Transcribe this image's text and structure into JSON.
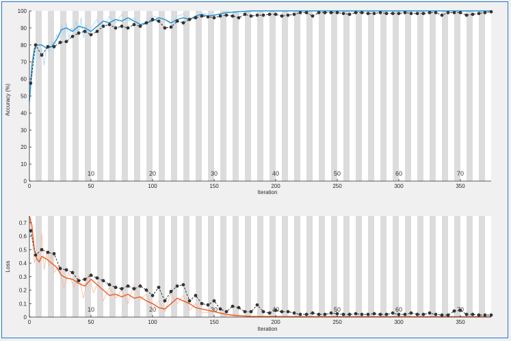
{
  "colors": {
    "accuracy_line": "#1f8fd6",
    "accuracy_raw": "#a6d3f2",
    "loss_line": "#f2571b",
    "loss_raw": "#f9b79b",
    "validation": "#333333",
    "band": "#dcdcdc",
    "plot_bg": "#ffffff",
    "frame": "#1f77d0"
  },
  "chart_data": [
    {
      "type": "line",
      "title": "",
      "xlabel": "Iteration",
      "ylabel": "Accuracy (%)",
      "xlim": [
        0,
        375
      ],
      "ylim": [
        0,
        100
      ],
      "xticks": [
        0,
        50,
        100,
        150,
        200,
        250,
        300,
        350
      ],
      "yticks": [
        0,
        10,
        20,
        30,
        40,
        50,
        60,
        70,
        80,
        90,
        100
      ],
      "grid": false,
      "epoch_band_width": 5,
      "epoch_labels": [
        {
          "x": 50,
          "text": "10"
        },
        {
          "x": 100,
          "text": "20"
        },
        {
          "x": 150,
          "text": "30"
        },
        {
          "x": 200,
          "text": "40"
        },
        {
          "x": 250,
          "text": "50"
        },
        {
          "x": 300,
          "text": "60"
        },
        {
          "x": 350,
          "text": "70"
        }
      ],
      "series": [
        {
          "role": "training_smoothed",
          "x": [
            0,
            2,
            4,
            6,
            10,
            14,
            18,
            22,
            26,
            30,
            35,
            40,
            45,
            50,
            55,
            60,
            65,
            70,
            75,
            80,
            85,
            90,
            95,
            100,
            105,
            110,
            115,
            120,
            125,
            130,
            135,
            140,
            145,
            150,
            160,
            170,
            180,
            200,
            220,
            240,
            260,
            280,
            300,
            320,
            340,
            360,
            375
          ],
          "y": [
            47,
            68,
            78,
            80,
            80,
            78,
            79,
            83,
            89,
            90,
            88,
            91,
            90,
            88,
            91,
            94,
            93,
            95,
            94,
            96,
            94,
            92,
            93,
            94,
            96,
            95,
            93,
            95,
            96,
            95,
            97,
            98,
            97,
            97.5,
            99,
            99.5,
            100,
            100,
            100,
            100,
            100,
            100,
            100,
            100,
            100,
            100,
            100
          ]
        },
        {
          "role": "training_raw",
          "x": [
            0,
            2,
            4,
            6,
            8,
            10,
            12,
            14,
            16,
            18,
            20,
            22,
            24,
            26,
            28,
            30,
            32,
            34,
            36,
            38,
            40,
            42,
            44,
            46,
            48,
            50,
            55,
            60,
            65,
            70,
            75,
            80,
            85,
            90,
            95,
            100,
            105,
            110,
            115,
            120,
            125,
            130,
            140,
            150,
            160,
            170,
            180,
            200,
            220,
            240,
            260,
            300,
            340,
            375
          ],
          "y": [
            45,
            60,
            76,
            80,
            72,
            78,
            68,
            80,
            76,
            82,
            78,
            86,
            84,
            92,
            86,
            93,
            84,
            90,
            88,
            94,
            86,
            96,
            84,
            92,
            86,
            90,
            95,
            90,
            97,
            93,
            98,
            94,
            96,
            91,
            94,
            97,
            96,
            95,
            92,
            97,
            98,
            95,
            99,
            97,
            100,
            98,
            100,
            100,
            100,
            100,
            100,
            100,
            100,
            100
          ]
        },
        {
          "role": "validation",
          "x": [
            1,
            5,
            10,
            15,
            20,
            25,
            30,
            35,
            40,
            45,
            50,
            55,
            60,
            65,
            70,
            75,
            80,
            85,
            90,
            95,
            100,
            105,
            110,
            115,
            120,
            125,
            130,
            135,
            140,
            145,
            150,
            155,
            160,
            165,
            170,
            175,
            180,
            185,
            190,
            195,
            200,
            205,
            210,
            215,
            220,
            225,
            230,
            235,
            240,
            245,
            250,
            255,
            260,
            265,
            270,
            275,
            280,
            285,
            290,
            295,
            300,
            305,
            310,
            315,
            320,
            325,
            330,
            335,
            340,
            345,
            350,
            355,
            360,
            365,
            370,
            375
          ],
          "y": [
            57.5,
            80,
            74,
            79,
            79,
            81.5,
            82,
            85,
            87,
            88,
            86,
            88,
            91,
            92,
            90,
            91,
            90,
            92,
            91,
            93,
            95,
            94,
            90,
            90.5,
            94,
            93,
            95,
            96,
            97,
            96.5,
            96,
            97,
            97.5,
            97,
            96,
            98,
            97,
            97.5,
            97.5,
            98,
            98,
            97,
            97.5,
            98,
            99,
            99,
            97,
            99,
            99,
            99,
            99,
            98.5,
            98,
            99,
            99,
            98.5,
            98.5,
            99,
            98.5,
            98.5,
            98.5,
            99,
            98.5,
            98.5,
            98.5,
            99,
            99,
            97.5,
            99,
            99,
            99,
            97.5,
            98,
            98.5,
            99,
            99.5
          ]
        }
      ]
    },
    {
      "type": "line",
      "title": "",
      "xlabel": "Iteration",
      "ylabel": "Loss",
      "xlim": [
        0,
        375
      ],
      "ylim": [
        0,
        0.75
      ],
      "xticks": [
        0,
        50,
        100,
        150,
        200,
        250,
        300,
        350
      ],
      "yticks": [
        0,
        0.1,
        0.2,
        0.3,
        0.4,
        0.5,
        0.6,
        0.7
      ],
      "grid": false,
      "epoch_band_width": 5,
      "epoch_labels": [
        {
          "x": 50,
          "text": "10"
        },
        {
          "x": 100,
          "text": "20"
        },
        {
          "x": 150,
          "text": "30"
        },
        {
          "x": 200,
          "text": "40"
        },
        {
          "x": 250,
          "text": "50"
        },
        {
          "x": 300,
          "text": "60"
        },
        {
          "x": 350,
          "text": "70"
        }
      ],
      "series": [
        {
          "role": "training_smoothed",
          "x": [
            0,
            2,
            4,
            6,
            8,
            10,
            14,
            18,
            22,
            26,
            30,
            35,
            40,
            45,
            50,
            55,
            60,
            65,
            70,
            75,
            80,
            85,
            90,
            95,
            100,
            105,
            110,
            115,
            120,
            125,
            130,
            135,
            140,
            145,
            150,
            155,
            160,
            170,
            180,
            200,
            220,
            260,
            300,
            340,
            375
          ],
          "y": [
            0.75,
            0.68,
            0.5,
            0.43,
            0.41,
            0.45,
            0.43,
            0.4,
            0.37,
            0.31,
            0.29,
            0.28,
            0.25,
            0.23,
            0.28,
            0.24,
            0.2,
            0.16,
            0.17,
            0.15,
            0.17,
            0.14,
            0.15,
            0.12,
            0.1,
            0.07,
            0.06,
            0.1,
            0.14,
            0.12,
            0.1,
            0.07,
            0.06,
            0.05,
            0.04,
            0.03,
            0.02,
            0.01,
            0.005,
            0.004,
            0.003,
            0.003,
            0.003,
            0.003,
            0.003
          ]
        },
        {
          "role": "training_raw",
          "x": [
            0,
            2,
            4,
            6,
            8,
            10,
            12,
            14,
            16,
            18,
            20,
            24,
            28,
            32,
            36,
            40,
            44,
            48,
            52,
            56,
            60,
            65,
            70,
            75,
            80,
            85,
            90,
            95,
            100,
            105,
            110,
            115,
            120,
            125,
            130,
            135,
            140,
            150,
            160,
            180,
            200,
            250,
            300,
            350,
            375
          ],
          "y": [
            0.74,
            0.6,
            0.4,
            0.48,
            0.4,
            0.62,
            0.35,
            0.48,
            0.38,
            0.47,
            0.33,
            0.38,
            0.22,
            0.33,
            0.22,
            0.3,
            0.14,
            0.32,
            0.18,
            0.26,
            0.12,
            0.22,
            0.14,
            0.2,
            0.1,
            0.24,
            0.13,
            0.17,
            0.06,
            0.12,
            0.04,
            0.18,
            0.1,
            0.16,
            0.05,
            0.1,
            0.03,
            0.04,
            0.01,
            0.005,
            0.004,
            0.003,
            0.003,
            0.003,
            0.003
          ]
        },
        {
          "role": "validation",
          "x": [
            1,
            5,
            10,
            15,
            20,
            25,
            30,
            35,
            40,
            45,
            50,
            55,
            60,
            65,
            70,
            75,
            80,
            85,
            90,
            95,
            100,
            105,
            110,
            115,
            120,
            125,
            130,
            135,
            140,
            145,
            150,
            155,
            160,
            165,
            170,
            175,
            180,
            185,
            190,
            195,
            200,
            205,
            210,
            215,
            220,
            225,
            230,
            235,
            240,
            245,
            250,
            255,
            260,
            265,
            270,
            275,
            280,
            285,
            290,
            295,
            300,
            305,
            310,
            315,
            320,
            325,
            330,
            335,
            340,
            345,
            350,
            355,
            360,
            365,
            370,
            375
          ],
          "y": [
            0.64,
            0.46,
            0.5,
            0.48,
            0.47,
            0.36,
            0.35,
            0.33,
            0.27,
            0.28,
            0.31,
            0.29,
            0.27,
            0.24,
            0.22,
            0.21,
            0.23,
            0.21,
            0.23,
            0.2,
            0.16,
            0.22,
            0.12,
            0.19,
            0.23,
            0.24,
            0.12,
            0.16,
            0.1,
            0.09,
            0.12,
            0.06,
            0.04,
            0.08,
            0.07,
            0.04,
            0.04,
            0.09,
            0.04,
            0.03,
            0.05,
            0.04,
            0.04,
            0.03,
            0.02,
            0.02,
            0.03,
            0.02,
            0.02,
            0.03,
            0.025,
            0.02,
            0.02,
            0.025,
            0.02,
            0.02,
            0.025,
            0.02,
            0.02,
            0.03,
            0.02,
            0.02,
            0.03,
            0.02,
            0.02,
            0.03,
            0.02,
            0.015,
            0.015,
            0.045,
            0.05,
            0.02,
            0.02,
            0.015,
            0.015,
            0.015
          ]
        }
      ]
    }
  ]
}
